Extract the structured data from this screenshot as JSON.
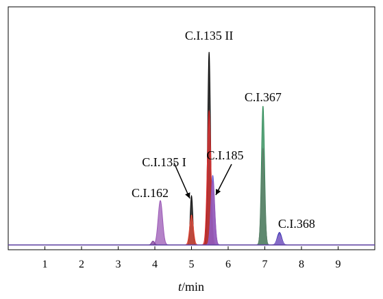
{
  "chart_data": {
    "type": "line",
    "title": "",
    "xlabel_var": "t",
    "xlabel_unit": "/min",
    "ylabel": "",
    "xlim": [
      0,
      10
    ],
    "x_ticks": [
      1,
      2,
      3,
      4,
      5,
      6,
      7,
      8,
      9
    ],
    "y_axis_labels": false,
    "grid": false,
    "baseline_color": "#5b3fa0",
    "peaks": [
      {
        "label": "C.I.162",
        "rt": 4.15,
        "components": [
          {
            "color": "#9b59b6",
            "height": 0.23,
            "width": 0.06
          },
          {
            "color": "#7d3c98",
            "height": 0.02,
            "width": 0.04,
            "rt": 3.95
          }
        ]
      },
      {
        "label": "C.I.135 I",
        "rt": 5.0,
        "components": [
          {
            "color": "#000000",
            "height": 0.255,
            "width": 0.035
          },
          {
            "color": "#e74c3c",
            "height": 0.155,
            "width": 0.05
          }
        ]
      },
      {
        "label": "C.I.135 II",
        "rt": 5.48,
        "components": [
          {
            "color": "#000000",
            "height": 1.0,
            "width": 0.038
          },
          {
            "color": "#e03030",
            "height": 0.695,
            "width": 0.05
          }
        ]
      },
      {
        "label": "C.I.185",
        "rt": 5.58,
        "components": [
          {
            "color": "#6a5acd",
            "height": 0.36,
            "width": 0.05
          },
          {
            "color": "#9b59b6",
            "height": 0.33,
            "width": 0.05
          }
        ]
      },
      {
        "label": "C.I.367",
        "rt": 6.95,
        "components": [
          {
            "color": "#2e8b57",
            "height": 0.72,
            "width": 0.042
          },
          {
            "color": "#5f7f6a",
            "height": 0.5,
            "width": 0.045
          }
        ]
      },
      {
        "label": "C.I.368",
        "rt": 7.4,
        "components": [
          {
            "color": "#3a2fb0",
            "height": 0.065,
            "width": 0.06
          },
          {
            "color": "#8e6ec8",
            "height": 0.05,
            "width": 0.06
          }
        ]
      }
    ]
  }
}
